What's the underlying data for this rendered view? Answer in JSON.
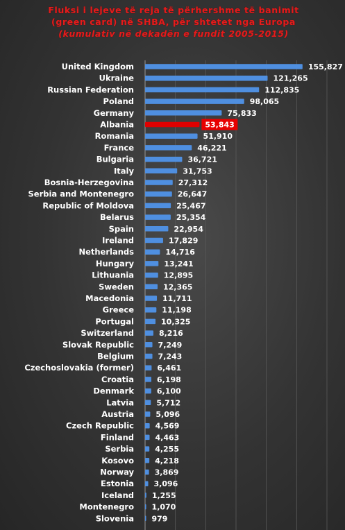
{
  "title_main": "Fluksi i lejeve të reja të përhershme të banimit (green card) në SHBA, për shtetet nga Europa",
  "title_italic": "(kumulativ në dekadën e fundit 2005-2015)",
  "colors": {
    "bar": "#4f8fe0",
    "bar_highlight": "#e00000",
    "highlight_box": "#e80000",
    "gridline": "#5a5a5a",
    "axis": "#9a9a9a"
  },
  "chart_data": {
    "type": "bar",
    "orientation": "horizontal",
    "title": "Fluksi i lejeve të reja të përhershme të banimit (green card) në SHBA, për shtetet nga Europa (kumulativ në dekadën e fundit 2005-2015)",
    "xlabel": "",
    "ylabel": "",
    "xlim": [
      0,
      180000
    ],
    "grid": true,
    "highlight": "Albania",
    "categories": [
      "United Kingdom",
      "Ukraine",
      "Russian Federation",
      "Poland",
      "Germany",
      "Albania",
      "Romania",
      "France",
      "Bulgaria",
      "Italy",
      "Bosnia-Herzegovina",
      "Serbia and Montenegro",
      "Republic of Moldova",
      "Belarus",
      "Spain",
      "Ireland",
      "Netherlands",
      "Hungary",
      "Lithuania",
      "Sweden",
      "Macedonia",
      "Greece",
      "Portugal",
      "Switzerland",
      "Slovak Republic",
      "Belgium",
      "Czechoslovakia (former)",
      "Croatia",
      "Denmark",
      "Latvia",
      "Austria",
      "Czech Republic",
      "Finland",
      "Serbia",
      "Kosovo",
      "Norway",
      "Estonia",
      "Iceland",
      "Montenegro",
      "Slovenia"
    ],
    "values": [
      155827,
      121265,
      112835,
      98065,
      75833,
      53843,
      51910,
      46221,
      36721,
      31753,
      27312,
      26647,
      25467,
      25354,
      22954,
      17829,
      14716,
      13241,
      12895,
      12365,
      11711,
      11198,
      10325,
      8216,
      7249,
      7243,
      6461,
      6198,
      6100,
      5712,
      5096,
      4569,
      4463,
      4255,
      4218,
      3869,
      3096,
      1255,
      1070,
      979
    ],
    "labels": [
      "155,827",
      "121,265",
      "112,835",
      "98,065",
      "75,833",
      "53,843",
      "51,910",
      "46,221",
      "36,721",
      "31,753",
      "27,312",
      "26,647",
      "25,467",
      "25,354",
      "22,954",
      "17,829",
      "14,716",
      "13,241",
      "12,895",
      "12,365",
      "11,711",
      "11,198",
      "10,325",
      "8,216",
      "7,249",
      "7,243",
      "6,461",
      "6,198",
      "6,100",
      "5,712",
      "5,096",
      "4,569",
      "4,463",
      "4,255",
      "4,218",
      "3,869",
      "3,096",
      "1,255",
      "1,070",
      "979"
    ]
  }
}
